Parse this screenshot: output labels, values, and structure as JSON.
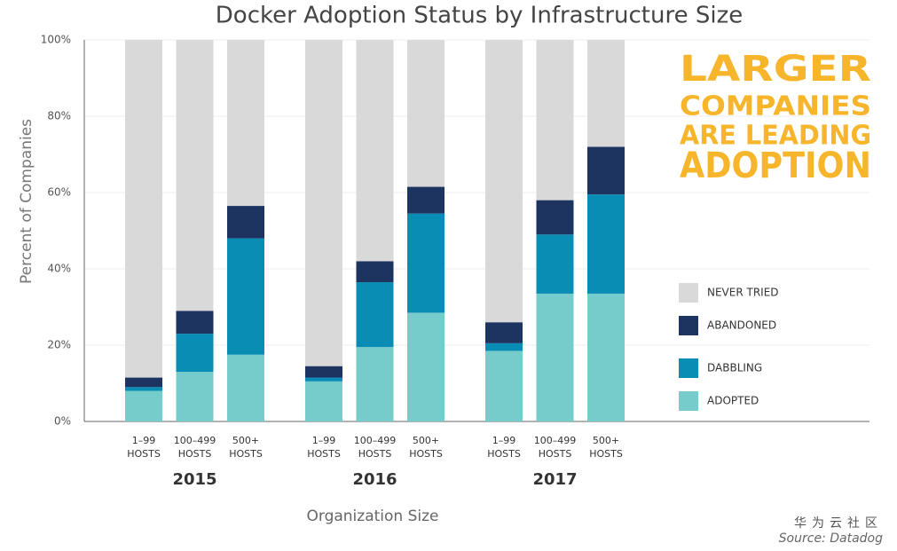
{
  "chart_data": {
    "type": "stacked_bar",
    "title": "Docker Adoption Status by Infrastructure Size",
    "ylabel": "Percent of Companies",
    "xlabel": "Organization Size",
    "categories": [
      "1–99 HOSTS",
      "100–499 HOSTS",
      "500+ HOSTS",
      "1–99 HOSTS",
      "100–499 HOSTS",
      "500+ HOSTS",
      "1–99 HOSTS",
      "100–499 HOSTS",
      "500+ HOSTS"
    ],
    "groups": [
      "2015",
      "2016",
      "2017"
    ],
    "series": [
      {
        "name": "ADOPTED",
        "color": "#76cbcb",
        "values": [
          8,
          13,
          17.5,
          10.5,
          19.5,
          28.5,
          18.5,
          33.5,
          33.5
        ]
      },
      {
        "name": "DABBLING",
        "color": "#0a8db4",
        "values": [
          1,
          10,
          30.5,
          1,
          17,
          26,
          2,
          15.5,
          26
        ]
      },
      {
        "name": "ABANDONED",
        "color": "#1d3461",
        "values": [
          2.5,
          6,
          8.5,
          3,
          5.5,
          7,
          5.5,
          9,
          12.5
        ]
      },
      {
        "name": "NEVER TRIED",
        "color": "#d9d9d9",
        "values": [
          88.5,
          71,
          43.5,
          85.5,
          58,
          38.5,
          74,
          42,
          28
        ]
      }
    ],
    "ylim": [
      0,
      100
    ],
    "yticks": [
      {
        "value": 0,
        "label": "0%"
      },
      {
        "value": 20,
        "label": "20%"
      },
      {
        "value": 40,
        "label": "40%"
      },
      {
        "value": 60,
        "label": "60%"
      },
      {
        "value": 80,
        "label": "80%"
      },
      {
        "value": 100,
        "label": "100%"
      }
    ],
    "grid": true,
    "annotation": [
      "LARGER",
      "COMPANIES",
      "ARE LEADING",
      "ADOPTION"
    ],
    "source": "Source: Datadog",
    "watermark": "华为云社区"
  }
}
